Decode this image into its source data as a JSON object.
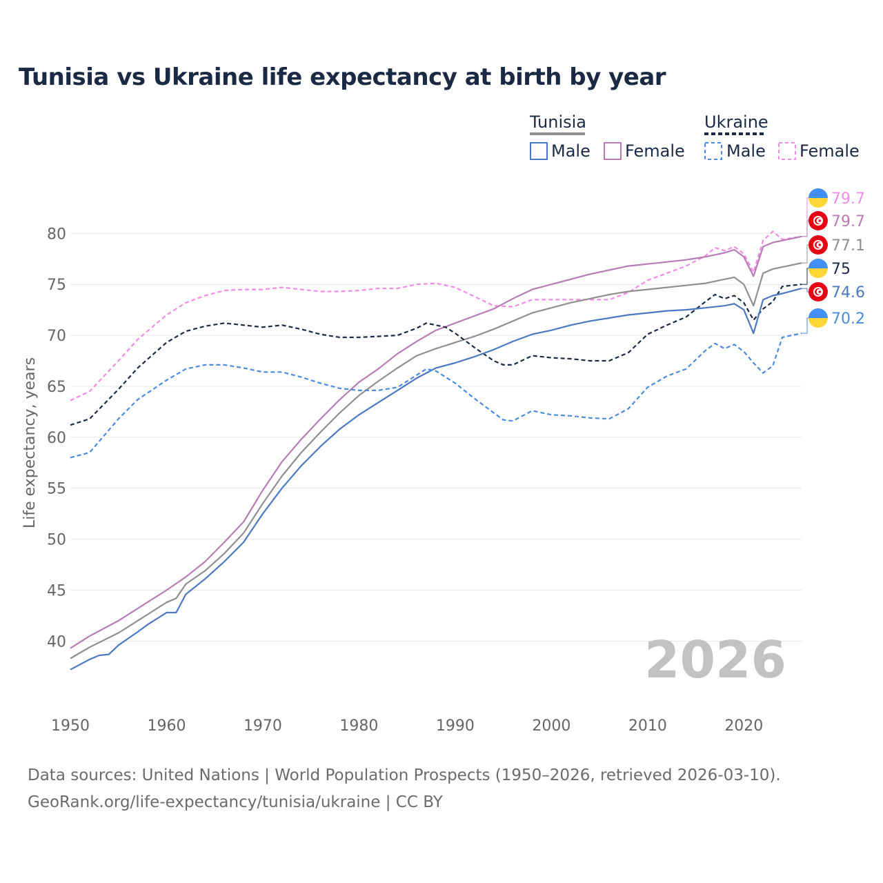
{
  "chart_data": {
    "type": "line",
    "title": "Tunisia vs Ukraine life expectancy at birth by year",
    "xlabel": "",
    "ylabel": "Life expectancy, years",
    "xlim": [
      1950,
      2026
    ],
    "ylim": [
      34,
      83
    ],
    "x_ticks": [
      "1950",
      "1960",
      "1970",
      "1980",
      "1990",
      "2000",
      "2010",
      "2020"
    ],
    "y_ticks": [
      "40",
      "45",
      "50",
      "55",
      "60",
      "65",
      "70",
      "75",
      "80"
    ],
    "year_label": "2026",
    "legend": {
      "groups": [
        {
          "name": "Tunisia",
          "items": [
            "Male",
            "Female"
          ]
        },
        {
          "name": "Ukraine",
          "items": [
            "Male",
            "Female"
          ]
        }
      ]
    },
    "series": [
      {
        "id": "ukraine-female",
        "name": "Ukraine Female",
        "color": "#f28be6",
        "dash": true,
        "end_label": "79.7",
        "flag": "ukraine",
        "points": [
          [
            1950,
            63.6
          ],
          [
            1952,
            64.5
          ],
          [
            1955,
            67.5
          ],
          [
            1957,
            69.6
          ],
          [
            1960,
            72.0
          ],
          [
            1962,
            73.2
          ],
          [
            1964,
            73.9
          ],
          [
            1966,
            74.4
          ],
          [
            1968,
            74.5
          ],
          [
            1970,
            74.5
          ],
          [
            1972,
            74.7
          ],
          [
            1974,
            74.5
          ],
          [
            1976,
            74.3
          ],
          [
            1978,
            74.3
          ],
          [
            1980,
            74.4
          ],
          [
            1982,
            74.6
          ],
          [
            1984,
            74.6
          ],
          [
            1986,
            75.0
          ],
          [
            1988,
            75.1
          ],
          [
            1990,
            74.7
          ],
          [
            1992,
            73.8
          ],
          [
            1994,
            72.9
          ],
          [
            1996,
            72.8
          ],
          [
            1998,
            73.5
          ],
          [
            2000,
            73.5
          ],
          [
            2002,
            73.5
          ],
          [
            2004,
            73.5
          ],
          [
            2006,
            73.5
          ],
          [
            2008,
            74.2
          ],
          [
            2010,
            75.4
          ],
          [
            2012,
            76.1
          ],
          [
            2014,
            76.8
          ],
          [
            2016,
            77.8
          ],
          [
            2017,
            78.6
          ],
          [
            2018,
            78.3
          ],
          [
            2019,
            78.7
          ],
          [
            2020,
            78.0
          ],
          [
            2021,
            76.2
          ],
          [
            2022,
            79.3
          ],
          [
            2023,
            80.2
          ],
          [
            2024,
            79.4
          ],
          [
            2026,
            79.7
          ]
        ]
      },
      {
        "id": "tunisia-female",
        "name": "Tunisia Female",
        "color": "#b77bb5",
        "dash": false,
        "end_label": "79.7",
        "flag": "tunisia",
        "points": [
          [
            1950,
            39.3
          ],
          [
            1952,
            40.5
          ],
          [
            1955,
            42.0
          ],
          [
            1958,
            43.8
          ],
          [
            1960,
            45.0
          ],
          [
            1962,
            46.3
          ],
          [
            1964,
            47.8
          ],
          [
            1966,
            49.7
          ],
          [
            1968,
            51.7
          ],
          [
            1970,
            54.8
          ],
          [
            1972,
            57.6
          ],
          [
            1974,
            59.8
          ],
          [
            1976,
            61.8
          ],
          [
            1978,
            63.7
          ],
          [
            1980,
            65.4
          ],
          [
            1982,
            66.7
          ],
          [
            1984,
            68.2
          ],
          [
            1986,
            69.4
          ],
          [
            1988,
            70.5
          ],
          [
            1990,
            71.2
          ],
          [
            1992,
            71.9
          ],
          [
            1994,
            72.6
          ],
          [
            1996,
            73.6
          ],
          [
            1998,
            74.5
          ],
          [
            2000,
            75.0
          ],
          [
            2002,
            75.5
          ],
          [
            2004,
            76.0
          ],
          [
            2006,
            76.4
          ],
          [
            2008,
            76.8
          ],
          [
            2010,
            77.0
          ],
          [
            2012,
            77.2
          ],
          [
            2014,
            77.4
          ],
          [
            2016,
            77.7
          ],
          [
            2018,
            78.1
          ],
          [
            2019,
            78.4
          ],
          [
            2020,
            77.7
          ],
          [
            2021,
            75.8
          ],
          [
            2022,
            78.7
          ],
          [
            2023,
            79.1
          ],
          [
            2024,
            79.3
          ],
          [
            2026,
            79.7
          ]
        ]
      },
      {
        "id": "tunisia-total",
        "name": "Tunisia",
        "color": "#8f8f8f",
        "dash": false,
        "end_label": "77.1",
        "flag": "tunisia",
        "points": [
          [
            1950,
            38.3
          ],
          [
            1952,
            39.4
          ],
          [
            1955,
            40.8
          ],
          [
            1958,
            42.6
          ],
          [
            1960,
            43.8
          ],
          [
            1961,
            44.2
          ],
          [
            1962,
            45.6
          ],
          [
            1964,
            46.9
          ],
          [
            1966,
            48.6
          ],
          [
            1968,
            50.6
          ],
          [
            1970,
            53.5
          ],
          [
            1972,
            56.2
          ],
          [
            1974,
            58.5
          ],
          [
            1976,
            60.5
          ],
          [
            1978,
            62.4
          ],
          [
            1980,
            64.1
          ],
          [
            1982,
            65.5
          ],
          [
            1984,
            66.8
          ],
          [
            1986,
            68.0
          ],
          [
            1988,
            68.7
          ],
          [
            1990,
            69.3
          ],
          [
            1992,
            69.9
          ],
          [
            1994,
            70.6
          ],
          [
            1996,
            71.4
          ],
          [
            1998,
            72.2
          ],
          [
            2000,
            72.7
          ],
          [
            2002,
            73.2
          ],
          [
            2004,
            73.6
          ],
          [
            2006,
            74.0
          ],
          [
            2008,
            74.3
          ],
          [
            2010,
            74.5
          ],
          [
            2012,
            74.7
          ],
          [
            2014,
            74.9
          ],
          [
            2016,
            75.1
          ],
          [
            2018,
            75.5
          ],
          [
            2019,
            75.7
          ],
          [
            2020,
            75.0
          ],
          [
            2021,
            72.9
          ],
          [
            2022,
            76.1
          ],
          [
            2023,
            76.5
          ],
          [
            2024,
            76.7
          ],
          [
            2026,
            77.1
          ]
        ]
      },
      {
        "id": "ukraine-total",
        "name": "Ukraine",
        "color": "#1b2a44",
        "dash": true,
        "end_label": "75",
        "flag": "ukraine",
        "points": [
          [
            1950,
            61.2
          ],
          [
            1952,
            61.8
          ],
          [
            1955,
            64.7
          ],
          [
            1957,
            66.8
          ],
          [
            1960,
            69.3
          ],
          [
            1962,
            70.4
          ],
          [
            1964,
            70.9
          ],
          [
            1966,
            71.2
          ],
          [
            1968,
            71.0
          ],
          [
            1970,
            70.8
          ],
          [
            1972,
            71.0
          ],
          [
            1974,
            70.6
          ],
          [
            1976,
            70.1
          ],
          [
            1978,
            69.8
          ],
          [
            1980,
            69.8
          ],
          [
            1982,
            69.9
          ],
          [
            1984,
            70.0
          ],
          [
            1986,
            70.7
          ],
          [
            1987,
            71.2
          ],
          [
            1988,
            71.0
          ],
          [
            1989,
            70.8
          ],
          [
            1990,
            70.2
          ],
          [
            1992,
            68.8
          ],
          [
            1994,
            67.5
          ],
          [
            1995,
            67.1
          ],
          [
            1996,
            67.1
          ],
          [
            1998,
            68.0
          ],
          [
            2000,
            67.8
          ],
          [
            2002,
            67.7
          ],
          [
            2004,
            67.5
          ],
          [
            2006,
            67.5
          ],
          [
            2008,
            68.3
          ],
          [
            2010,
            70.1
          ],
          [
            2012,
            71.0
          ],
          [
            2014,
            71.8
          ],
          [
            2016,
            73.3
          ],
          [
            2017,
            74.0
          ],
          [
            2018,
            73.6
          ],
          [
            2019,
            73.9
          ],
          [
            2020,
            73.2
          ],
          [
            2021,
            71.5
          ],
          [
            2022,
            72.6
          ],
          [
            2023,
            73.3
          ],
          [
            2024,
            74.8
          ],
          [
            2026,
            75.0
          ]
        ]
      },
      {
        "id": "tunisia-male",
        "name": "Tunisia Male",
        "color": "#4a78c2",
        "dash": false,
        "end_label": "74.6",
        "flag": "tunisia",
        "points": [
          [
            1950,
            37.2
          ],
          [
            1952,
            38.2
          ],
          [
            1953,
            38.6
          ],
          [
            1954,
            38.7
          ],
          [
            1955,
            39.6
          ],
          [
            1957,
            40.9
          ],
          [
            1958,
            41.6
          ],
          [
            1960,
            42.8
          ],
          [
            1961,
            42.8
          ],
          [
            1962,
            44.6
          ],
          [
            1964,
            46.1
          ],
          [
            1966,
            47.8
          ],
          [
            1968,
            49.7
          ],
          [
            1970,
            52.5
          ],
          [
            1972,
            55.0
          ],
          [
            1974,
            57.2
          ],
          [
            1976,
            59.1
          ],
          [
            1978,
            60.8
          ],
          [
            1980,
            62.2
          ],
          [
            1982,
            63.4
          ],
          [
            1984,
            64.6
          ],
          [
            1986,
            65.8
          ],
          [
            1988,
            66.8
          ],
          [
            1990,
            67.3
          ],
          [
            1992,
            67.9
          ],
          [
            1994,
            68.6
          ],
          [
            1996,
            69.4
          ],
          [
            1998,
            70.1
          ],
          [
            2000,
            70.5
          ],
          [
            2002,
            71.0
          ],
          [
            2004,
            71.4
          ],
          [
            2006,
            71.7
          ],
          [
            2008,
            72.0
          ],
          [
            2010,
            72.2
          ],
          [
            2012,
            72.4
          ],
          [
            2014,
            72.5
          ],
          [
            2016,
            72.7
          ],
          [
            2018,
            72.9
          ],
          [
            2019,
            73.1
          ],
          [
            2020,
            72.5
          ],
          [
            2021,
            70.2
          ],
          [
            2022,
            73.5
          ],
          [
            2023,
            73.9
          ],
          [
            2024,
            74.1
          ],
          [
            2026,
            74.6
          ]
        ]
      },
      {
        "id": "ukraine-male",
        "name": "Ukraine Male",
        "color": "#4a8ae0",
        "dash": true,
        "end_label": "70.2",
        "flag": "ukraine",
        "points": [
          [
            1950,
            58.0
          ],
          [
            1952,
            58.5
          ],
          [
            1955,
            61.8
          ],
          [
            1957,
            63.7
          ],
          [
            1960,
            65.6
          ],
          [
            1962,
            66.7
          ],
          [
            1964,
            67.1
          ],
          [
            1966,
            67.1
          ],
          [
            1968,
            66.8
          ],
          [
            1970,
            66.4
          ],
          [
            1972,
            66.4
          ],
          [
            1974,
            65.9
          ],
          [
            1976,
            65.3
          ],
          [
            1978,
            64.8
          ],
          [
            1980,
            64.6
          ],
          [
            1982,
            64.6
          ],
          [
            1984,
            64.9
          ],
          [
            1986,
            66.1
          ],
          [
            1987,
            66.7
          ],
          [
            1988,
            66.5
          ],
          [
            1990,
            65.3
          ],
          [
            1992,
            63.8
          ],
          [
            1994,
            62.4
          ],
          [
            1995,
            61.7
          ],
          [
            1996,
            61.6
          ],
          [
            1998,
            62.6
          ],
          [
            2000,
            62.2
          ],
          [
            2002,
            62.1
          ],
          [
            2004,
            61.9
          ],
          [
            2006,
            61.8
          ],
          [
            2008,
            62.8
          ],
          [
            2010,
            64.9
          ],
          [
            2012,
            66.0
          ],
          [
            2014,
            66.7
          ],
          [
            2016,
            68.5
          ],
          [
            2017,
            69.2
          ],
          [
            2018,
            68.7
          ],
          [
            2019,
            69.1
          ],
          [
            2020,
            68.4
          ],
          [
            2021,
            67.3
          ],
          [
            2022,
            66.3
          ],
          [
            2023,
            67.0
          ],
          [
            2024,
            69.8
          ],
          [
            2026,
            70.2
          ]
        ]
      }
    ]
  },
  "footer": {
    "sources": "Data sources: United Nations | World Population Prospects (1950–2026, retrieved 2026-03-10).",
    "credit": "GeoRank.org/life-expectancy/tunisia/ukraine | CC BY"
  }
}
